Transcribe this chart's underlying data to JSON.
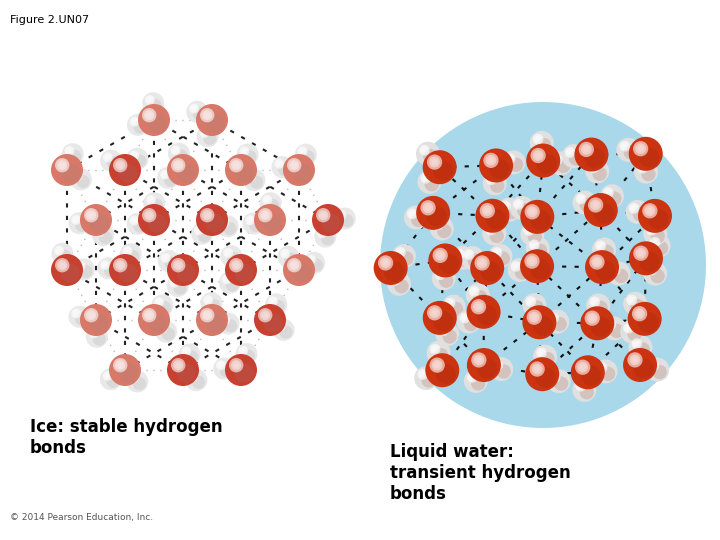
{
  "title": "Figure 2.UN07",
  "copyright": "© 2014 Pearson Education, Inc.",
  "label_left": "Ice: stable hydrogen\nbonds",
  "label_right": "Liquid water:\ntransient hydrogen\nbonds",
  "bg_color": "#ffffff",
  "circle_left_bg": "#ffffff",
  "circle_right_bg": "#a8d8ea",
  "circle_border_color": "#000000",
  "title_fontsize": 8,
  "label_fontsize": 12,
  "copyright_fontsize": 6.5,
  "fig_width": 7.2,
  "fig_height": 5.4,
  "dpi": 100,
  "oxygen_color_bright": "#e05030",
  "oxygen_color_mid": "#cc3311",
  "oxygen_color_dark": "#882200",
  "hydrogen_color_bright": "#ffffff",
  "hydrogen_color_mid": "#dddddd",
  "hydrogen_color_dark": "#aaaaaa",
  "bond_color_ice": "#888888",
  "bond_color_liq": "#222222"
}
